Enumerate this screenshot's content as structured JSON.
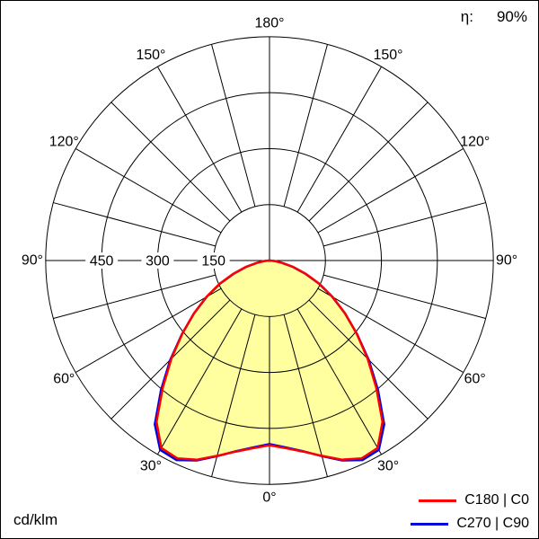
{
  "header": {
    "efficiency_label": "η:",
    "efficiency_value": "90%"
  },
  "footer": {
    "units_label": "cd/klm"
  },
  "legend": [
    {
      "label": "C180 | C0",
      "color": "#ff0000"
    },
    {
      "label": "C270 | C90",
      "color": "#0000dd"
    }
  ],
  "chart_data": {
    "type": "line",
    "coordinate_system": "polar",
    "description": "Luminous intensity distribution curve of a luminaire; gamma 0° at nadir (bottom), intensity in cd/klm",
    "efficiency": "90%",
    "units": "cd/klm",
    "radial_max": 600,
    "radial_ticks": [
      150,
      300,
      450
    ],
    "angle_grid_step_deg": 15,
    "angle_label_step_deg": 30,
    "angle_tick_labels": [
      "0°",
      "30°",
      "60°",
      "90°",
      "120°",
      "150°",
      "180°"
    ],
    "grid_color": "#000000",
    "fill_color": "#ffffa0",
    "symmetric_about_vertical": true,
    "gamma_deg": [
      0,
      5,
      10,
      15,
      20,
      25,
      30,
      35,
      40,
      45,
      50,
      55,
      60,
      65,
      70,
      75,
      80,
      85,
      90
    ],
    "series": [
      {
        "name": "C180 | C0",
        "color": "#ff0000",
        "values": [
          495,
          505,
          520,
          542,
          568,
          585,
          580,
          528,
          445,
          372,
          305,
          248,
          196,
          148,
          103,
          65,
          34,
          13,
          0
        ]
      },
      {
        "name": "C270 | C90",
        "color": "#0000dd",
        "values": [
          492,
          503,
          519,
          543,
          570,
          590,
          586,
          536,
          452,
          376,
          306,
          247,
          194,
          146,
          101,
          63,
          32,
          12,
          0
        ]
      }
    ]
  }
}
